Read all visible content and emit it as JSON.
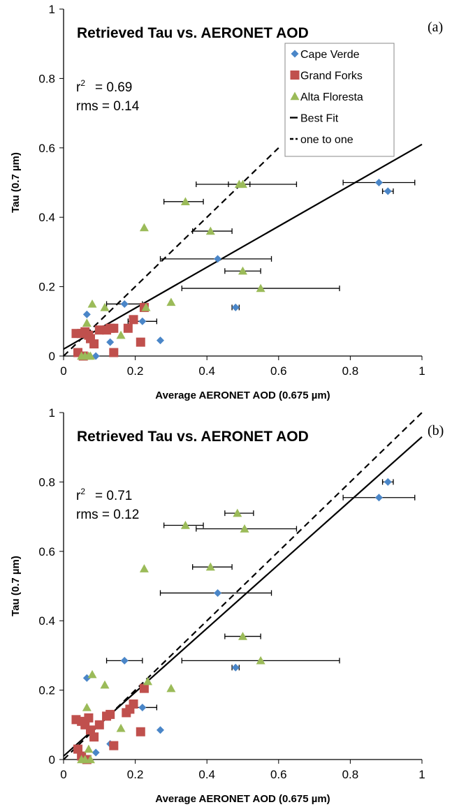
{
  "colors": {
    "cape_verde": "#4a86c8",
    "grand_forks": "#c0504d",
    "alta_floresta": "#9bbb59",
    "line": "#000000"
  },
  "chart_data": [
    {
      "type": "scatter",
      "panel_label": "(a)",
      "title": "Retrieved Tau vs. AERONET AOD",
      "xlabel": "Average AERONET AOD (0.675 µm)",
      "ylabel": "Tau (0.7 µm)",
      "xlim": [
        0,
        1
      ],
      "ylim": [
        0,
        1
      ],
      "xticks": [
        "0",
        "0.2",
        "0.4",
        "0.6",
        "0.8",
        "1"
      ],
      "yticks": [
        "0",
        "0.2",
        "0.4",
        "0.6",
        "0.8",
        "1"
      ],
      "stats": {
        "r2_label": "r",
        "r2_sup": "2",
        "r2_value": "= 0.69",
        "rms": "rms = 0.14"
      },
      "legend": {
        "position": "top-right",
        "entries": [
          "Cape Verde",
          "Grand Forks",
          "Alta Floresta",
          "Best Fit",
          "one to one"
        ]
      },
      "best_fit": {
        "x": [
          0,
          1
        ],
        "y": [
          0.02,
          0.61
        ]
      },
      "one_to_one": {
        "x": [
          0,
          0.6
        ],
        "y": [
          0,
          0.6
        ]
      },
      "series": [
        {
          "name": "Cape Verde",
          "marker": "diamond",
          "points": [
            {
              "x": 0.88,
              "y": 0.5,
              "xerr": [
                0.78,
                0.98
              ]
            },
            {
              "x": 0.905,
              "y": 0.475,
              "xerr": [
                0.89,
                0.92
              ]
            },
            {
              "x": 0.43,
              "y": 0.28,
              "xerr": [
                0.27,
                0.58
              ]
            },
            {
              "x": 0.48,
              "y": 0.14,
              "xerr": [
                0.47,
                0.49
              ]
            },
            {
              "x": 0.17,
              "y": 0.15,
              "xerr": [
                0.12,
                0.22
              ]
            },
            {
              "x": 0.22,
              "y": 0.1,
              "xerr": [
                0.18,
                0.26
              ]
            },
            {
              "x": 0.065,
              "y": 0.12
            },
            {
              "x": 0.27,
              "y": 0.045
            },
            {
              "x": 0.09,
              "y": 0.0
            },
            {
              "x": 0.13,
              "y": 0.04
            }
          ]
        },
        {
          "name": "Grand Forks",
          "marker": "square",
          "points": [
            {
              "x": 0.035,
              "y": 0.065
            },
            {
              "x": 0.05,
              "y": 0.065
            },
            {
              "x": 0.06,
              "y": 0.07
            },
            {
              "x": 0.07,
              "y": 0.06
            },
            {
              "x": 0.075,
              "y": 0.05
            },
            {
              "x": 0.085,
              "y": 0.035
            },
            {
              "x": 0.1,
              "y": 0.075
            },
            {
              "x": 0.12,
              "y": 0.075
            },
            {
              "x": 0.13,
              "y": 0.08
            },
            {
              "x": 0.14,
              "y": 0.08
            },
            {
              "x": 0.18,
              "y": 0.08
            },
            {
              "x": 0.195,
              "y": 0.105
            },
            {
              "x": 0.215,
              "y": 0.04
            },
            {
              "x": 0.225,
              "y": 0.14
            },
            {
              "x": 0.04,
              "y": 0.01
            },
            {
              "x": 0.055,
              "y": 0.0
            },
            {
              "x": 0.14,
              "y": 0.01
            }
          ]
        },
        {
          "name": "Alta Floresta",
          "marker": "triangle",
          "points": [
            {
              "x": 0.5,
              "y": 0.495,
              "xerr": [
                0.37,
                0.65
              ]
            },
            {
              "x": 0.49,
              "y": 0.495,
              "xerr": [
                0.46,
                0.52
              ]
            },
            {
              "x": 0.34,
              "y": 0.445,
              "xerr": [
                0.28,
                0.39
              ]
            },
            {
              "x": 0.225,
              "y": 0.37
            },
            {
              "x": 0.41,
              "y": 0.36,
              "xerr": [
                0.36,
                0.47
              ]
            },
            {
              "x": 0.5,
              "y": 0.245,
              "xerr": [
                0.45,
                0.55
              ]
            },
            {
              "x": 0.55,
              "y": 0.195,
              "xerr": [
                0.33,
                0.77
              ]
            },
            {
              "x": 0.3,
              "y": 0.155
            },
            {
              "x": 0.08,
              "y": 0.15
            },
            {
              "x": 0.115,
              "y": 0.14
            },
            {
              "x": 0.23,
              "y": 0.14
            },
            {
              "x": 0.065,
              "y": 0.095
            },
            {
              "x": 0.16,
              "y": 0.06
            },
            {
              "x": 0.05,
              "y": 0.0
            },
            {
              "x": 0.06,
              "y": 0.0
            },
            {
              "x": 0.07,
              "y": 0.0
            },
            {
              "x": 0.075,
              "y": 0.0
            }
          ]
        }
      ]
    },
    {
      "type": "scatter",
      "panel_label": "(b)",
      "title": "Retrieved Tau vs. AERONET AOD",
      "xlabel": "Average AERONET AOD (0.675 µm)",
      "ylabel": "Tau (0.7 µm)",
      "xlim": [
        0,
        1
      ],
      "ylim": [
        0,
        1
      ],
      "xticks": [
        "0",
        "0.2",
        "0.4",
        "0.6",
        "0.8",
        "1"
      ],
      "yticks": [
        "0",
        "0.2",
        "0.4",
        "0.6",
        "0.8",
        "1"
      ],
      "stats": {
        "r2_label": "r",
        "r2_sup": "2",
        "r2_value": "= 0.71",
        "rms": "rms = 0.12"
      },
      "best_fit": {
        "x": [
          0,
          1
        ],
        "y": [
          0.01,
          0.93
        ]
      },
      "one_to_one": {
        "x": [
          0,
          1
        ],
        "y": [
          0,
          1
        ]
      },
      "series": [
        {
          "name": "Cape Verde",
          "marker": "diamond",
          "points": [
            {
              "x": 0.905,
              "y": 0.8,
              "xerr": [
                0.89,
                0.92
              ]
            },
            {
              "x": 0.88,
              "y": 0.755,
              "xerr": [
                0.78,
                0.98
              ]
            },
            {
              "x": 0.43,
              "y": 0.48,
              "xerr": [
                0.27,
                0.58
              ]
            },
            {
              "x": 0.48,
              "y": 0.265,
              "xerr": [
                0.47,
                0.49
              ]
            },
            {
              "x": 0.17,
              "y": 0.285,
              "xerr": [
                0.12,
                0.22
              ]
            },
            {
              "x": 0.065,
              "y": 0.235
            },
            {
              "x": 0.22,
              "y": 0.15,
              "xerr": [
                0.18,
                0.26
              ]
            },
            {
              "x": 0.27,
              "y": 0.085
            },
            {
              "x": 0.13,
              "y": 0.045
            },
            {
              "x": 0.09,
              "y": 0.02
            }
          ]
        },
        {
          "name": "Grand Forks",
          "marker": "square",
          "points": [
            {
              "x": 0.035,
              "y": 0.115
            },
            {
              "x": 0.05,
              "y": 0.11
            },
            {
              "x": 0.06,
              "y": 0.1
            },
            {
              "x": 0.07,
              "y": 0.12
            },
            {
              "x": 0.075,
              "y": 0.085
            },
            {
              "x": 0.085,
              "y": 0.065
            },
            {
              "x": 0.1,
              "y": 0.1
            },
            {
              "x": 0.12,
              "y": 0.125
            },
            {
              "x": 0.13,
              "y": 0.13
            },
            {
              "x": 0.14,
              "y": 0.04
            },
            {
              "x": 0.175,
              "y": 0.135
            },
            {
              "x": 0.185,
              "y": 0.145
            },
            {
              "x": 0.195,
              "y": 0.16
            },
            {
              "x": 0.215,
              "y": 0.08
            },
            {
              "x": 0.225,
              "y": 0.205
            },
            {
              "x": 0.04,
              "y": 0.03
            },
            {
              "x": 0.05,
              "y": 0.01
            },
            {
              "x": 0.065,
              "y": 0.0
            }
          ]
        },
        {
          "name": "Alta Floresta",
          "marker": "triangle",
          "points": [
            {
              "x": 0.485,
              "y": 0.71,
              "xerr": [
                0.45,
                0.53
              ]
            },
            {
              "x": 0.34,
              "y": 0.675,
              "xerr": [
                0.28,
                0.39
              ]
            },
            {
              "x": 0.505,
              "y": 0.665,
              "xerr": [
                0.37,
                0.65
              ]
            },
            {
              "x": 0.41,
              "y": 0.555,
              "xerr": [
                0.36,
                0.47
              ]
            },
            {
              "x": 0.225,
              "y": 0.55
            },
            {
              "x": 0.5,
              "y": 0.355,
              "xerr": [
                0.45,
                0.55
              ]
            },
            {
              "x": 0.55,
              "y": 0.285,
              "xerr": [
                0.33,
                0.77
              ]
            },
            {
              "x": 0.08,
              "y": 0.245
            },
            {
              "x": 0.235,
              "y": 0.225
            },
            {
              "x": 0.115,
              "y": 0.215
            },
            {
              "x": 0.3,
              "y": 0.205
            },
            {
              "x": 0.065,
              "y": 0.15
            },
            {
              "x": 0.16,
              "y": 0.09
            },
            {
              "x": 0.07,
              "y": 0.03
            },
            {
              "x": 0.05,
              "y": 0.0
            },
            {
              "x": 0.06,
              "y": 0.0
            },
            {
              "x": 0.075,
              "y": 0.0
            }
          ]
        }
      ]
    }
  ]
}
